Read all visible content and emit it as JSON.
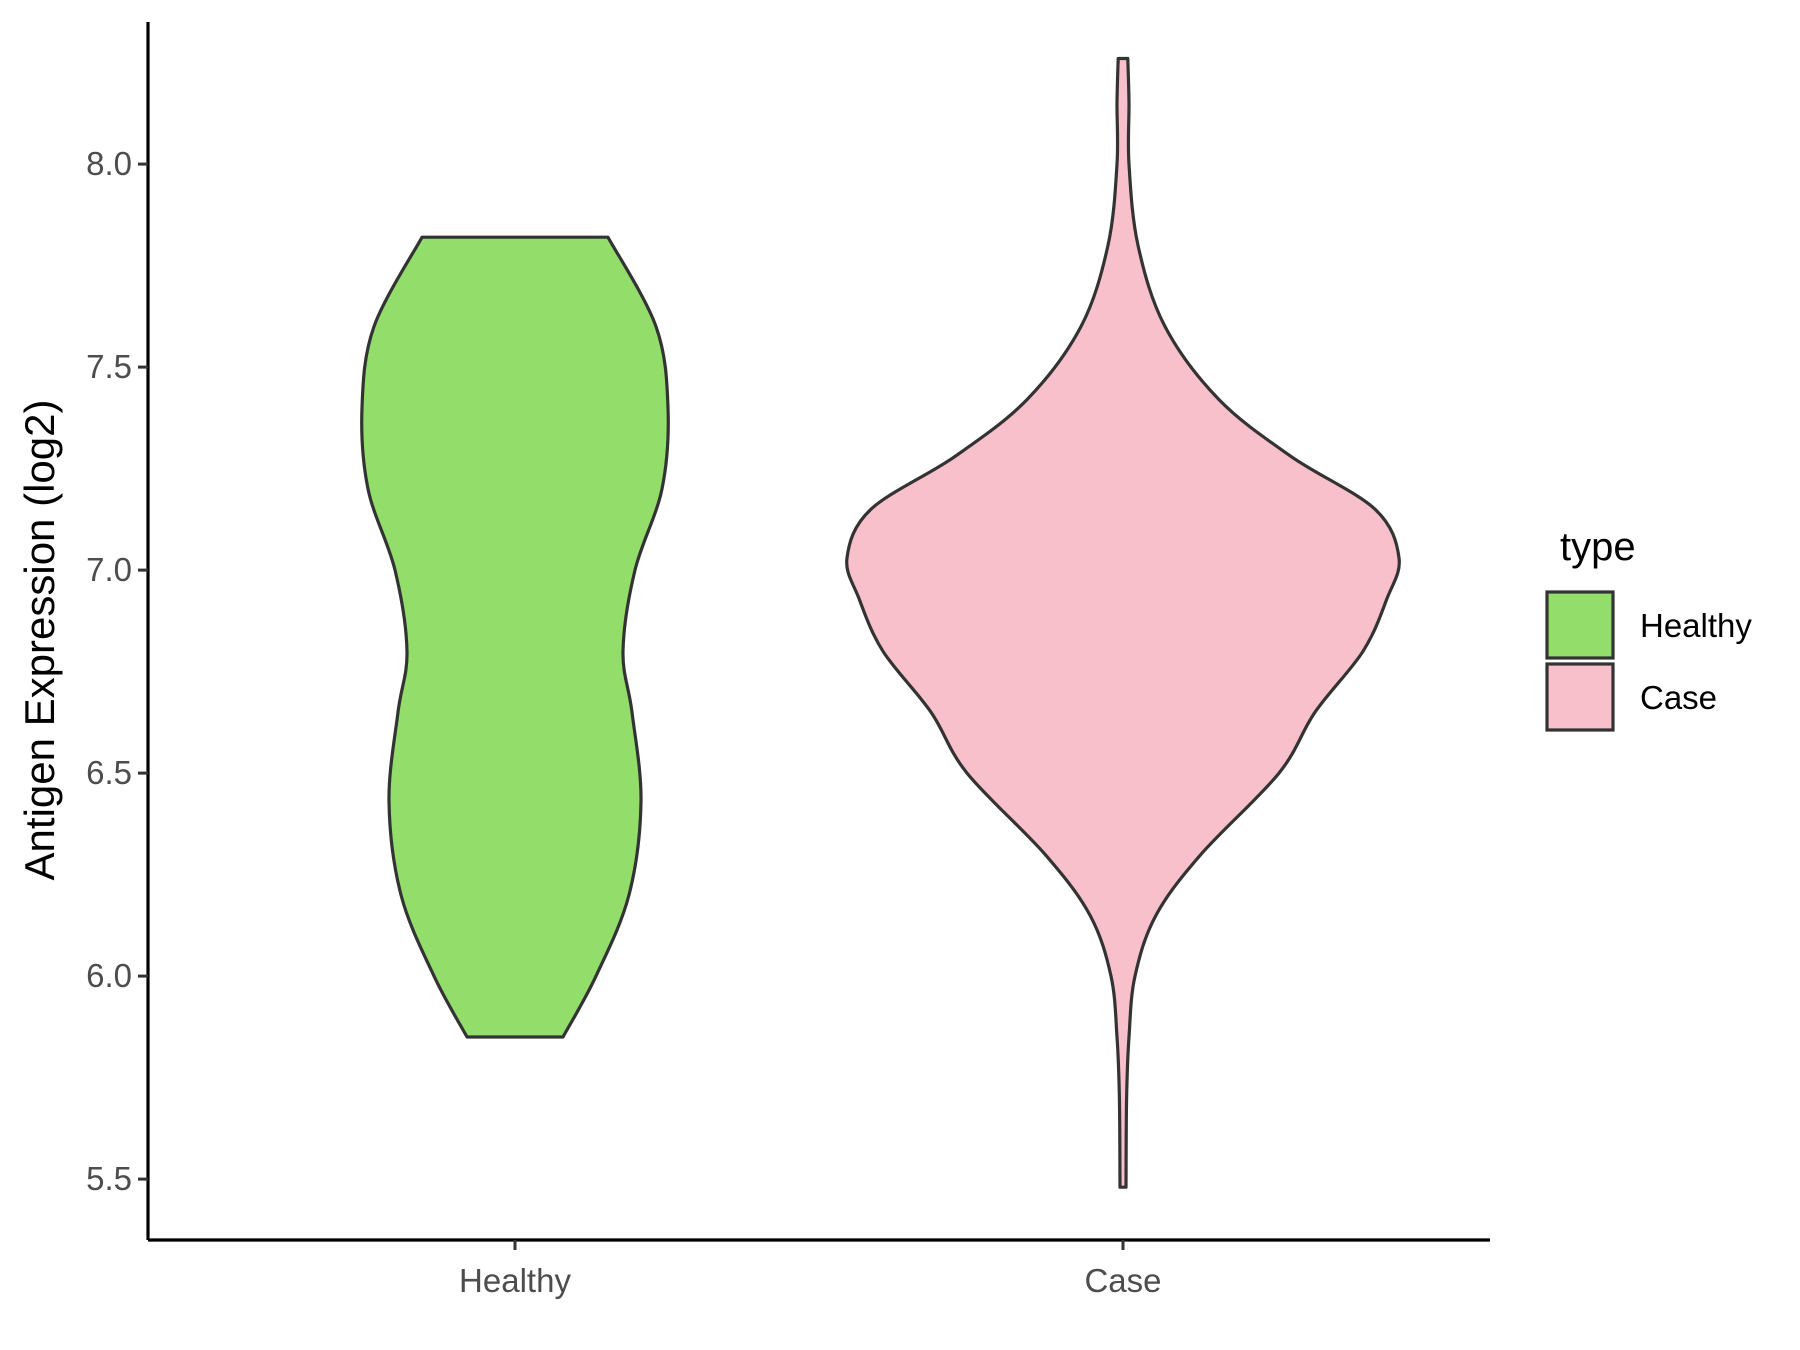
{
  "chart_data": {
    "type": "violin",
    "xlabel": "",
    "ylabel": "Antigen Expression (log2)",
    "ylim": [
      5.35,
      8.35
    ],
    "yticks": [
      5.5,
      6.0,
      6.5,
      7.0,
      7.5,
      8.0
    ],
    "ytick_labels": [
      "5.5",
      "6.0",
      "6.5",
      "7.0",
      "7.5",
      "8.0"
    ],
    "categories": [
      "Healthy",
      "Case"
    ],
    "series": [
      {
        "name": "Healthy",
        "color": "#93DD6A",
        "min": 5.85,
        "max": 7.82,
        "density": [
          [
            5.85,
            0.16
          ],
          [
            6.0,
            0.27
          ],
          [
            6.2,
            0.38
          ],
          [
            6.43,
            0.42
          ],
          [
            6.65,
            0.39
          ],
          [
            6.8,
            0.36
          ],
          [
            7.0,
            0.4
          ],
          [
            7.2,
            0.49
          ],
          [
            7.4,
            0.51
          ],
          [
            7.6,
            0.47
          ],
          [
            7.82,
            0.31
          ]
        ]
      },
      {
        "name": "Case",
        "color": "#F8C0CB",
        "min": 5.48,
        "max": 8.26,
        "density": [
          [
            5.48,
            0.01
          ],
          [
            5.7,
            0.012
          ],
          [
            5.85,
            0.02
          ],
          [
            6.0,
            0.04
          ],
          [
            6.15,
            0.11
          ],
          [
            6.3,
            0.26
          ],
          [
            6.5,
            0.52
          ],
          [
            6.65,
            0.64
          ],
          [
            6.8,
            0.8
          ],
          [
            6.93,
            0.88
          ],
          [
            7.03,
            0.92
          ],
          [
            7.15,
            0.84
          ],
          [
            7.28,
            0.56
          ],
          [
            7.42,
            0.32
          ],
          [
            7.6,
            0.14
          ],
          [
            7.8,
            0.05
          ],
          [
            8.0,
            0.02
          ],
          [
            8.15,
            0.02
          ],
          [
            8.26,
            0.016
          ]
        ]
      }
    ],
    "legend": {
      "title": "type",
      "position": "right",
      "entries": [
        {
          "label": "Healthy",
          "color": "#93DD6A"
        },
        {
          "label": "Case",
          "color": "#F8C0CB"
        }
      ]
    },
    "grid": false
  }
}
